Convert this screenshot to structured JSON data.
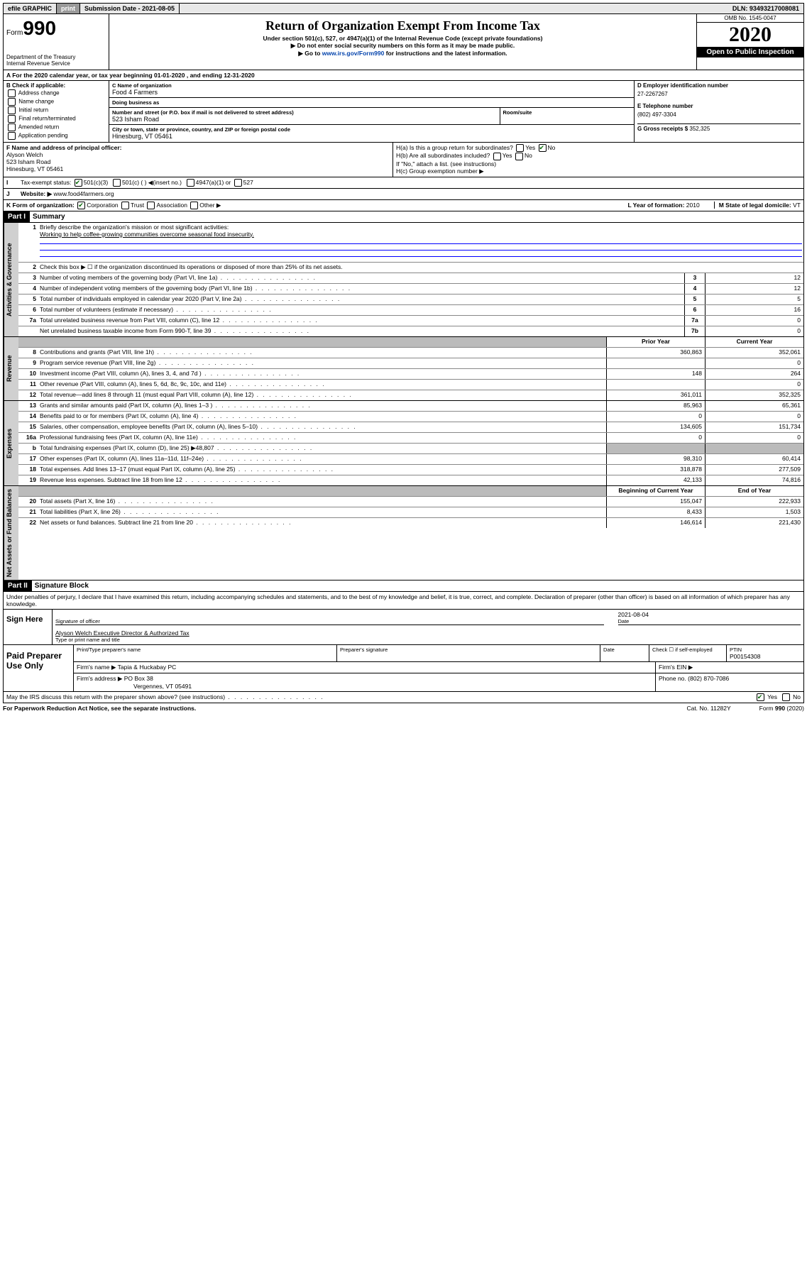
{
  "topbar": {
    "efile": "efile GRAPHIC",
    "print": "print",
    "submission_label": "Submission Date - 2021-08-05",
    "dln": "DLN: 93493217008081"
  },
  "header": {
    "form_word": "Form",
    "form_num": "990",
    "title": "Return of Organization Exempt From Income Tax",
    "sub1": "Under section 501(c), 527, or 4947(a)(1) of the Internal Revenue Code (except private foundations)",
    "sub2": "▶ Do not enter social security numbers on this form as it may be made public.",
    "sub3_pre": "▶ Go to ",
    "sub3_link": "www.irs.gov/Form990",
    "sub3_post": " for instructions and the latest information.",
    "omb": "OMB No. 1545-0047",
    "year": "2020",
    "open": "Open to Public Inspection",
    "dept1": "Department of the Treasury",
    "dept2": "Internal Revenue Service"
  },
  "lineA": "For the 2020 calendar year, or tax year beginning 01-01-2020   , and ending 12-31-2020",
  "boxB": {
    "label": "B Check if applicable:",
    "opts": [
      "Address change",
      "Name change",
      "Initial return",
      "Final return/terminated",
      "Amended return",
      "Application pending"
    ]
  },
  "boxC": {
    "name_label": "C Name of organization",
    "name": "Food 4 Farmers",
    "dba_label": "Doing business as",
    "dba": "",
    "addr_label": "Number and street (or P.O. box if mail is not delivered to street address)",
    "addr": "523 Isham Road",
    "room_label": "Room/suite",
    "city_label": "City or town, state or province, country, and ZIP or foreign postal code",
    "city": "Hinesburg, VT  05461"
  },
  "boxD": {
    "label": "D Employer identification number",
    "ein": "27-2267267"
  },
  "boxE": {
    "label": "E Telephone number",
    "phone": "(802) 497-3304"
  },
  "boxG": {
    "label": "G Gross receipts $",
    "amount": "352,325"
  },
  "boxF": {
    "label": "F  Name and address of principal officer:",
    "name": "Alyson Welch",
    "addr1": "523 Isham Road",
    "addr2": "Hinesburg, VT  05461"
  },
  "boxH": {
    "a": "H(a)  Is this a group return for subordinates?",
    "b": "H(b)  Are all subordinates included?",
    "b_note": "If \"No,\" attach a list. (see instructions)",
    "c": "H(c)  Group exemption number ▶",
    "yes": "Yes",
    "no": "No"
  },
  "status": {
    "label": "Tax-exempt status:",
    "o1": "501(c)(3)",
    "o2": "501(c) (  ) ◀(insert no.)",
    "o3": "4947(a)(1) or",
    "o4": "527"
  },
  "website": {
    "label": "Website: ▶",
    "url": "www.food4farmers.org"
  },
  "formOrg": {
    "label": "K Form of organization:",
    "corp": "Corporation",
    "trust": "Trust",
    "assoc": "Association",
    "other": "Other ▶",
    "yearL": "L Year of formation:",
    "year": "2010",
    "stateL": "M State of legal domicile:",
    "state": "VT"
  },
  "partI": {
    "hdr": "Part I",
    "title": "Summary",
    "q1": "Briefly describe the organization's mission or most significant activities:",
    "mission": "Working to help coffee-growing communities overcome seasonal food insecurity.",
    "q2": "Check this box ▶ ☐  if the organization discontinued its operations or disposed of more than 25% of its net assets.",
    "rows_gov": [
      {
        "n": "3",
        "d": "Number of voting members of the governing body (Part VI, line 1a)",
        "ln": "3",
        "v": "12"
      },
      {
        "n": "4",
        "d": "Number of independent voting members of the governing body (Part VI, line 1b)",
        "ln": "4",
        "v": "12"
      },
      {
        "n": "5",
        "d": "Total number of individuals employed in calendar year 2020 (Part V, line 2a)",
        "ln": "5",
        "v": "5"
      },
      {
        "n": "6",
        "d": "Total number of volunteers (estimate if necessary)",
        "ln": "6",
        "v": "16"
      },
      {
        "n": "7a",
        "d": "Total unrelated business revenue from Part VIII, column (C), line 12",
        "ln": "7a",
        "v": "0"
      },
      {
        "n": "",
        "d": "Net unrelated business taxable income from Form 990-T, line 39",
        "ln": "7b",
        "v": "0"
      }
    ],
    "hdr_prior": "Prior Year",
    "hdr_curr": "Current Year",
    "rows_rev": [
      {
        "n": "8",
        "d": "Contributions and grants (Part VIII, line 1h)",
        "p": "360,863",
        "c": "352,061"
      },
      {
        "n": "9",
        "d": "Program service revenue (Part VIII, line 2g)",
        "p": "",
        "c": "0"
      },
      {
        "n": "10",
        "d": "Investment income (Part VIII, column (A), lines 3, 4, and 7d )",
        "p": "148",
        "c": "264"
      },
      {
        "n": "11",
        "d": "Other revenue (Part VIII, column (A), lines 5, 6d, 8c, 9c, 10c, and 11e)",
        "p": "",
        "c": "0"
      },
      {
        "n": "12",
        "d": "Total revenue—add lines 8 through 11 (must equal Part VIII, column (A), line 12)",
        "p": "361,011",
        "c": "352,325"
      }
    ],
    "rows_exp": [
      {
        "n": "13",
        "d": "Grants and similar amounts paid (Part IX, column (A), lines 1–3 )",
        "p": "85,963",
        "c": "65,361"
      },
      {
        "n": "14",
        "d": "Benefits paid to or for members (Part IX, column (A), line 4)",
        "p": "0",
        "c": "0"
      },
      {
        "n": "15",
        "d": "Salaries, other compensation, employee benefits (Part IX, column (A), lines 5–10)",
        "p": "134,605",
        "c": "151,734"
      },
      {
        "n": "16a",
        "d": "Professional fundraising fees (Part IX, column (A), line 11e)",
        "p": "0",
        "c": "0"
      },
      {
        "n": "b",
        "d": "Total fundraising expenses (Part IX, column (D), line 25) ▶48,807",
        "p": "shade",
        "c": "shade"
      },
      {
        "n": "17",
        "d": "Other expenses (Part IX, column (A), lines 11a–11d, 11f–24e)",
        "p": "98,310",
        "c": "60,414"
      },
      {
        "n": "18",
        "d": "Total expenses. Add lines 13–17 (must equal Part IX, column (A), line 25)",
        "p": "318,878",
        "c": "277,509"
      },
      {
        "n": "19",
        "d": "Revenue less expenses. Subtract line 18 from line 12",
        "p": "42,133",
        "c": "74,816"
      }
    ],
    "hdr_begin": "Beginning of Current Year",
    "hdr_end": "End of Year",
    "rows_net": [
      {
        "n": "20",
        "d": "Total assets (Part X, line 16)",
        "p": "155,047",
        "c": "222,933"
      },
      {
        "n": "21",
        "d": "Total liabilities (Part X, line 26)",
        "p": "8,433",
        "c": "1,503"
      },
      {
        "n": "22",
        "d": "Net assets or fund balances. Subtract line 21 from line 20",
        "p": "146,614",
        "c": "221,430"
      }
    ],
    "side_gov": "Activities & Governance",
    "side_rev": "Revenue",
    "side_exp": "Expenses",
    "side_net": "Net Assets or Fund Balances"
  },
  "partII": {
    "hdr": "Part II",
    "title": "Signature Block",
    "perjury": "Under penalties of perjury, I declare that I have examined this return, including accompanying schedules and statements, and to the best of my knowledge and belief, it is true, correct, and complete. Declaration of preparer (other than officer) is based on all information of which preparer has any knowledge.",
    "sign_here": "Sign Here",
    "sig_officer": "Signature of officer",
    "date": "Date",
    "date_val": "2021-08-04",
    "name_title": "Alyson Welch  Executive Director & Authorized Tax",
    "type_name": "Type or print name and title",
    "paid_prep": "Paid Preparer Use Only",
    "print_name_l": "Print/Type preparer's name",
    "prep_sig_l": "Preparer's signature",
    "date_l": "Date",
    "check_self": "Check ☐ if self-employed",
    "ptin_l": "PTIN",
    "ptin": "P00154308",
    "firm_name_l": "Firm's name   ▶",
    "firm_name": "Tapia & Huckabay PC",
    "firm_ein_l": "Firm's EIN ▶",
    "firm_addr_l": "Firm's address ▶",
    "firm_addr": "PO Box 38",
    "firm_city": "Vergennes, VT  05491",
    "phone_l": "Phone no.",
    "phone": "(802) 870-7086",
    "discuss": "May the IRS discuss this return with the preparer shown above? (see instructions)",
    "yes": "Yes",
    "no": "No"
  },
  "footer": {
    "paperwork": "For Paperwork Reduction Act Notice, see the separate instructions.",
    "cat": "Cat. No. 11282Y",
    "form": "Form 990 (2020)"
  }
}
